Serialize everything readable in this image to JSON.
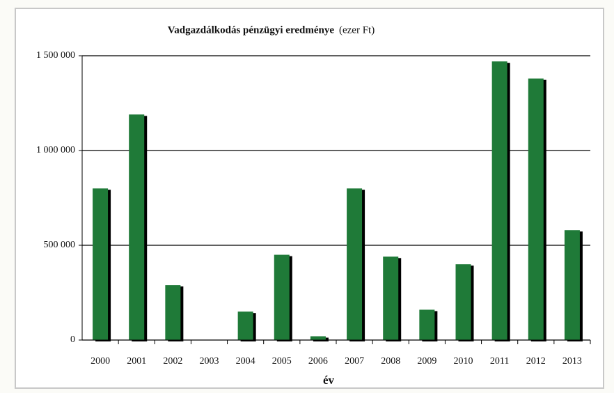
{
  "chart_data": {
    "type": "bar",
    "title": "Vadgazdálkodás pénzügyi eredménye",
    "title_unit": "(ezer Ft)",
    "x_label": "év",
    "categories": [
      "2000",
      "2001",
      "2002",
      "2003",
      "2004",
      "2005",
      "2006",
      "2007",
      "2008",
      "2009",
      "2010",
      "2011",
      "2012",
      "2013"
    ],
    "values": [
      800000,
      1190000,
      290000,
      0,
      150000,
      450000,
      20000,
      800000,
      440000,
      160000,
      400000,
      1470000,
      1380000,
      580000
    ],
    "color": "#1f7a38",
    "ylim": [
      0,
      1500000
    ],
    "yticks": [
      0,
      {
        "value": 500000,
        "label": "500 000"
      },
      {
        "value": 1000000,
        "label": "1 000 000"
      },
      {
        "value": 1500000,
        "label": "1 500 000"
      }
    ],
    "grid": true
  }
}
